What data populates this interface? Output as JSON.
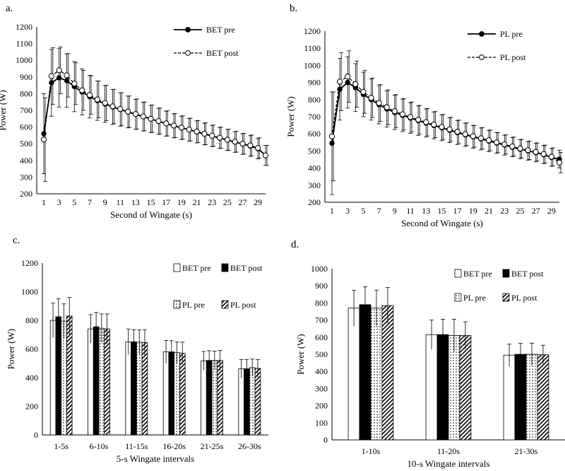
{
  "chart_data": [
    {
      "id": "a",
      "panel_label": "a.",
      "type": "line",
      "xlabel": "Second of Wingate (s)",
      "ylabel": "Power (W)",
      "ylim": [
        200,
        1200
      ],
      "ytick_step": 100,
      "xtick_labels": [
        "1",
        "3",
        "5",
        "7",
        "9",
        "11",
        "13",
        "15",
        "17",
        "19",
        "21",
        "23",
        "25",
        "27",
        "29"
      ],
      "legend_position": "top-right",
      "series": [
        {
          "name": "BET pre",
          "style": "solid-filled",
          "values": [
            560,
            865,
            895,
            878,
            842,
            810,
            782,
            758,
            738,
            720,
            705,
            690,
            676,
            662,
            648,
            634,
            620,
            607,
            595,
            583,
            571,
            558,
            546,
            534,
            522,
            510,
            498,
            486,
            470,
            430
          ],
          "errors": [
            240,
            200,
            175,
            160,
            150,
            138,
            128,
            118,
            110,
            105,
            100,
            95,
            90,
            86,
            82,
            78,
            75,
            72,
            70,
            68,
            66,
            65,
            64,
            63,
            63,
            62,
            62,
            62,
            61,
            60
          ]
        },
        {
          "name": "BET post",
          "style": "dashed-open",
          "values": [
            525,
            905,
            940,
            910,
            860,
            820,
            792,
            765,
            744,
            724,
            708,
            692,
            678,
            664,
            650,
            636,
            622,
            609,
            597,
            585,
            573,
            560,
            548,
            536,
            524,
            512,
            500,
            490,
            474,
            430
          ],
          "errors": [
            250,
            170,
            140,
            130,
            125,
            120,
            115,
            110,
            106,
            102,
            98,
            94,
            90,
            86,
            82,
            78,
            75,
            72,
            70,
            68,
            66,
            65,
            64,
            63,
            63,
            62,
            62,
            62,
            61,
            60
          ]
        }
      ]
    },
    {
      "id": "b",
      "panel_label": "b.",
      "type": "line",
      "xlabel": "Second of Wingate (s)",
      "ylabel": "Power (W)",
      "ylim": [
        200,
        1200
      ],
      "ytick_step": 100,
      "xtick_labels": [
        "1",
        "3",
        "5",
        "7",
        "9",
        "11",
        "13",
        "15",
        "17",
        "19",
        "21",
        "23",
        "25",
        "27",
        "29"
      ],
      "legend_position": "top-right",
      "series": [
        {
          "name": "PL pre",
          "style": "solid-filled",
          "values": [
            545,
            860,
            900,
            870,
            830,
            800,
            770,
            745,
            725,
            708,
            692,
            677,
            663,
            649,
            635,
            621,
            607,
            594,
            582,
            570,
            558,
            546,
            534,
            522,
            510,
            500,
            490,
            478,
            462,
            452
          ],
          "errors": [
            300,
            180,
            150,
            140,
            130,
            120,
            112,
            106,
            100,
            95,
            90,
            86,
            82,
            78,
            75,
            72,
            70,
            68,
            66,
            64,
            62,
            60,
            58,
            56,
            55,
            54,
            54,
            53,
            52,
            52
          ]
        },
        {
          "name": "PL post",
          "style": "dashed-open",
          "values": [
            585,
            905,
            935,
            890,
            845,
            810,
            780,
            755,
            732,
            714,
            698,
            682,
            668,
            654,
            640,
            626,
            612,
            598,
            586,
            574,
            562,
            550,
            538,
            526,
            514,
            504,
            494,
            482,
            466,
            432
          ],
          "errors": [
            260,
            170,
            150,
            135,
            125,
            115,
            108,
            102,
            97,
            92,
            88,
            84,
            80,
            76,
            73,
            70,
            68,
            66,
            64,
            62,
            60,
            58,
            56,
            55,
            54,
            54,
            53,
            52,
            52,
            60
          ]
        }
      ]
    },
    {
      "id": "c",
      "panel_label": "c.",
      "type": "bar",
      "xlabel": "5-s Wingate intervals",
      "ylabel": "Power (W)",
      "ylim": [
        0,
        1200
      ],
      "ytick_step": 200,
      "categories": [
        "1-5s",
        "6-10s",
        "11-15s",
        "16-20s",
        "21-25s",
        "26-30s"
      ],
      "legend_position": "top-right",
      "series": [
        {
          "name": "BET pre",
          "fill": "white",
          "values": [
            800,
            740,
            650,
            580,
            518,
            462
          ],
          "errors": [
            120,
            100,
            90,
            80,
            65,
            65
          ]
        },
        {
          "name": "BET post",
          "fill": "black",
          "values": [
            825,
            755,
            650,
            580,
            520,
            462
          ],
          "errors": [
            125,
            100,
            85,
            78,
            68,
            65
          ]
        },
        {
          "name": "PL pre",
          "fill": "dots",
          "values": [
            795,
            745,
            648,
            575,
            520,
            470
          ],
          "errors": [
            120,
            100,
            85,
            75,
            65,
            60
          ]
        },
        {
          "name": "PL post",
          "fill": "hatch",
          "values": [
            830,
            740,
            645,
            570,
            520,
            465
          ],
          "errors": [
            130,
            105,
            90,
            78,
            70,
            62
          ]
        }
      ]
    },
    {
      "id": "d",
      "panel_label": "d.",
      "type": "bar",
      "xlabel": "10-s Wingate intervals",
      "ylabel": "Power (W)",
      "ylim": [
        0,
        1000
      ],
      "ytick_step": 100,
      "categories": [
        "1-10s",
        "11-20s",
        "21-30s"
      ],
      "legend_position": "top-right",
      "series": [
        {
          "name": "BET pre",
          "fill": "white",
          "values": [
            770,
            615,
            495
          ],
          "errors": [
            105,
            85,
            65
          ]
        },
        {
          "name": "BET post",
          "fill": "black",
          "values": [
            790,
            615,
            500
          ],
          "errors": [
            105,
            90,
            65
          ]
        },
        {
          "name": "PL pre",
          "fill": "dots",
          "values": [
            770,
            610,
            500
          ],
          "errors": [
            105,
            95,
            65
          ]
        },
        {
          "name": "PL post",
          "fill": "hatch",
          "values": [
            785,
            610,
            498
          ],
          "errors": [
            105,
            80,
            55
          ]
        }
      ]
    }
  ]
}
